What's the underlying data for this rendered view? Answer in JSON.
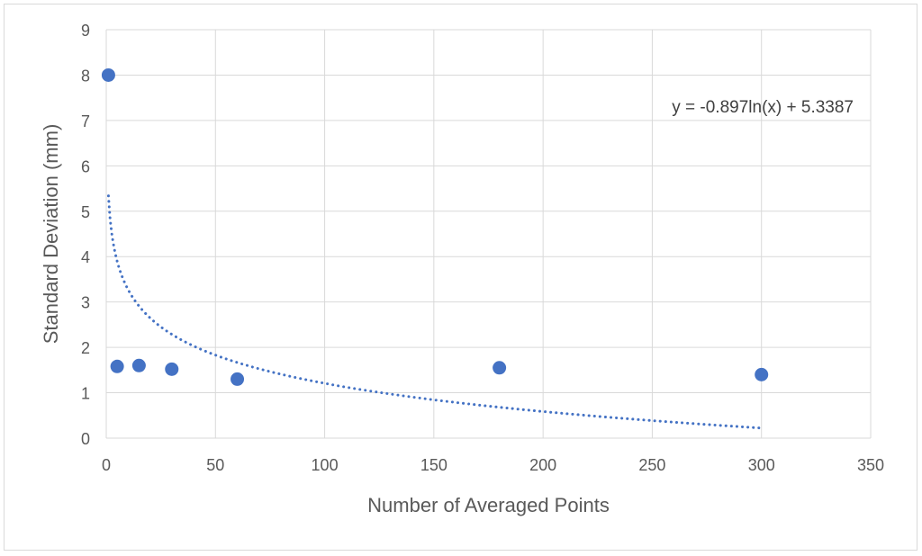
{
  "chart_data": {
    "type": "scatter",
    "title": "",
    "xlabel": "Number of Averaged Points",
    "ylabel": "Standard Deviation (mm)",
    "xlim": [
      0,
      350
    ],
    "ylim": [
      0,
      9
    ],
    "x_ticks": [
      "0",
      "50",
      "100",
      "150",
      "200",
      "250",
      "300",
      "350"
    ],
    "y_ticks": [
      "0",
      "1",
      "2",
      "3",
      "4",
      "5",
      "6",
      "7",
      "8",
      "9"
    ],
    "grid": true,
    "legend": "none",
    "series": [
      {
        "x": [
          1,
          5,
          15,
          30,
          60,
          180,
          300
        ],
        "y": [
          8.0,
          1.58,
          1.6,
          1.52,
          1.3,
          1.55,
          1.4
        ],
        "color": "#4472C4",
        "trendline": {
          "type": "logarithmic",
          "a": -0.897,
          "b": 5.3387,
          "x_range": [
            1,
            300
          ],
          "style": "dotted",
          "color": "#4472C4",
          "equation_label": "y = -0.897ln(x) + 5.3387"
        }
      }
    ]
  },
  "colors": {
    "grid": "#d9d9d9",
    "marker": "#4472C4",
    "axis_text": "#595959"
  }
}
